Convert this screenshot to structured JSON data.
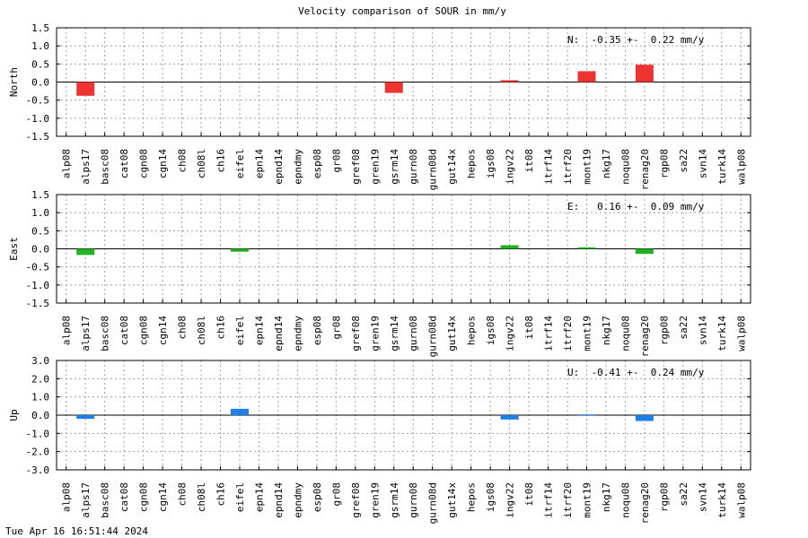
{
  "title": "Velocity comparison of SOUR in mm/y",
  "footer": "Tue Apr 16 16:51:44 2024",
  "chart_data": [
    {
      "type": "bar",
      "ylabel": "North",
      "ylim": [
        -1.5,
        1.5
      ],
      "yticks": [
        "-1.5",
        "-1.0",
        "-0.5",
        "0.0",
        "0.5",
        "1.0",
        "1.5"
      ],
      "grid": true,
      "color": "#ee3333",
      "annotation": "N:  -0.35 +-  0.22 mm/y",
      "categories": [
        "alp08",
        "alps17",
        "basc08",
        "cat08",
        "cgn08",
        "cgn14",
        "ch08",
        "ch08l",
        "ch16",
        "eifel",
        "epn14",
        "epnd14",
        "epndmy",
        "esp08",
        "gr08",
        "gref08",
        "gren19",
        "gsrm14",
        "gurn08",
        "gurn08d",
        "gut14x",
        "hepos",
        "igs08",
        "ingv22",
        "it08",
        "itrf14",
        "itrf20",
        "mont19",
        "nkg17",
        "noqu08",
        "renag20",
        "rgp08",
        "sa22",
        "svn14",
        "turk14",
        "walp08"
      ],
      "values": [
        0,
        -0.38,
        0,
        0,
        0,
        0,
        0,
        0,
        0,
        0,
        0,
        0,
        0,
        0,
        0,
        0,
        0,
        -0.3,
        0,
        0,
        0,
        0,
        0,
        0.05,
        0,
        0,
        0,
        0.3,
        0,
        0,
        0.48,
        0,
        0,
        0,
        0,
        0
      ]
    },
    {
      "type": "bar",
      "ylabel": "East",
      "ylim": [
        -1.5,
        1.5
      ],
      "yticks": [
        "-1.5",
        "-1.0",
        "-0.5",
        "0.0",
        "0.5",
        "1.0",
        "1.5"
      ],
      "grid": true,
      "color": "#22b322",
      "annotation": "E:   0.16 +-  0.09 mm/y",
      "categories": [
        "alp08",
        "alps17",
        "basc08",
        "cat08",
        "cgn08",
        "cgn14",
        "ch08",
        "ch08l",
        "ch16",
        "eifel",
        "epn14",
        "epnd14",
        "epndmy",
        "esp08",
        "gr08",
        "gref08",
        "gren19",
        "gsrm14",
        "gurn08",
        "gurn08d",
        "gut14x",
        "hepos",
        "igs08",
        "ingv22",
        "it08",
        "itrf14",
        "itrf20",
        "mont19",
        "nkg17",
        "noqu08",
        "renag20",
        "rgp08",
        "sa22",
        "svn14",
        "turk14",
        "walp08"
      ],
      "values": [
        0,
        -0.17,
        0,
        0,
        0,
        0,
        0,
        0,
        0,
        -0.08,
        0,
        0,
        0,
        0,
        0,
        0,
        0,
        0,
        0,
        0,
        0,
        0,
        0,
        0.1,
        0,
        0,
        0,
        0.04,
        0,
        0,
        -0.14,
        0,
        0,
        0,
        0,
        0
      ]
    },
    {
      "type": "bar",
      "ylabel": "Up",
      "ylim": [
        -3.0,
        3.0
      ],
      "yticks": [
        "-3.0",
        "-2.0",
        "-1.0",
        "0.0",
        "1.0",
        "2.0",
        "3.0"
      ],
      "grid": true,
      "color": "#1f7fe8",
      "annotation": "U:  -0.41 +-  0.24 mm/y",
      "categories": [
        "alp08",
        "alps17",
        "basc08",
        "cat08",
        "cgn08",
        "cgn14",
        "ch08",
        "ch08l",
        "ch16",
        "eifel",
        "epn14",
        "epnd14",
        "epndmy",
        "esp08",
        "gr08",
        "gref08",
        "gren19",
        "gsrm14",
        "gurn08",
        "gurn08d",
        "gut14x",
        "hepos",
        "igs08",
        "ingv22",
        "it08",
        "itrf14",
        "itrf20",
        "mont19",
        "nkg17",
        "noqu08",
        "renag20",
        "rgp08",
        "sa22",
        "svn14",
        "turk14",
        "walp08"
      ],
      "values": [
        0,
        -0.2,
        0,
        0,
        0,
        0,
        0,
        0,
        0,
        0.35,
        0,
        0,
        0,
        0,
        0,
        0,
        0,
        0,
        0,
        0,
        0,
        0,
        0,
        -0.24,
        0,
        0,
        0,
        0.04,
        0,
        0,
        -0.32,
        0,
        0,
        0,
        0,
        0
      ]
    }
  ]
}
